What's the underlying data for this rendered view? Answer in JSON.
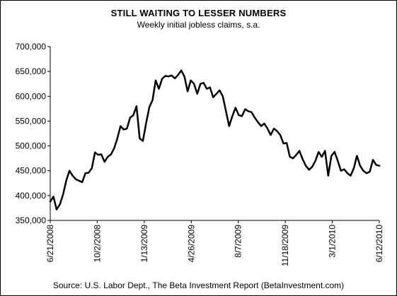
{
  "chart_data": {
    "type": "line",
    "title": "STILL WAITING TO LESSER NUMBERS",
    "subtitle": "Weekly initial jobless claims, s.a.",
    "source": "Source: U.S. Labor Dept., The Beta Investment Report (BetaInvestment.com)",
    "xlabel": "",
    "ylabel": "",
    "ylim": [
      350000,
      700000
    ],
    "y_ticks": [
      350000,
      400000,
      450000,
      500000,
      550000,
      600000,
      650000,
      700000
    ],
    "y_tick_labels": [
      "350,000",
      "400,000",
      "450,000",
      "500,000",
      "550,000",
      "600,000",
      "650,000",
      "700,000"
    ],
    "x_tick_labels": [
      "6/21/2008",
      "10/2/2008",
      "1/13/2009",
      "4/26/2009",
      "8/7/2009",
      "11/18/2009",
      "3/1/2010",
      "6/12/2010"
    ],
    "grid": false,
    "legend": "none",
    "line_color": "#000000",
    "series": [
      {
        "x": [
          "6/21/2008",
          "6/28/2008",
          "7/5/2008",
          "7/12/2008",
          "7/19/2008",
          "7/26/2008",
          "8/2/2008",
          "8/9/2008",
          "8/16/2008",
          "8/23/2008",
          "8/30/2008",
          "9/6/2008",
          "9/13/2008",
          "9/20/2008",
          "9/27/2008",
          "10/4/2008",
          "10/11/2008",
          "10/18/2008",
          "10/25/2008",
          "11/1/2008",
          "11/8/2008",
          "11/15/2008",
          "11/22/2008",
          "11/29/2008",
          "12/6/2008",
          "12/13/2008",
          "12/20/2008",
          "12/27/2008",
          "1/3/2009",
          "1/10/2009",
          "1/17/2009",
          "1/24/2009",
          "1/31/2009",
          "2/7/2009",
          "2/14/2009",
          "2/21/2009",
          "2/28/2009",
          "3/7/2009",
          "3/14/2009",
          "3/21/2009",
          "3/28/2009",
          "4/4/2009",
          "4/11/2009",
          "4/18/2009",
          "4/25/2009",
          "5/2/2009",
          "5/9/2009",
          "5/16/2009",
          "5/23/2009",
          "5/30/2009",
          "6/6/2009",
          "6/13/2009",
          "6/20/2009",
          "6/27/2009",
          "7/4/2009",
          "7/11/2009",
          "7/18/2009",
          "7/25/2009",
          "8/1/2009",
          "8/8/2009",
          "8/15/2009",
          "8/22/2009",
          "8/29/2009",
          "9/5/2009",
          "9/12/2009",
          "9/19/2009",
          "9/26/2009",
          "10/3/2009",
          "10/10/2009",
          "10/17/2009",
          "10/24/2009",
          "10/31/2009",
          "11/7/2009",
          "11/14/2009",
          "11/21/2009",
          "11/28/2009",
          "12/5/2009",
          "12/12/2009",
          "12/19/2009",
          "12/26/2009",
          "1/2/2010",
          "1/9/2010",
          "1/16/2010",
          "1/23/2010",
          "1/30/2010",
          "2/6/2010",
          "2/13/2010",
          "2/20/2010",
          "2/27/2010",
          "3/6/2010",
          "3/13/2010",
          "3/20/2010",
          "3/27/2010",
          "4/3/2010",
          "4/10/2010",
          "4/17/2010",
          "4/24/2010",
          "5/1/2010",
          "5/8/2010",
          "5/15/2010",
          "5/22/2010",
          "5/29/2010",
          "6/5/2010",
          "6/12/2010"
        ],
        "values": [
          388000,
          398000,
          372000,
          382000,
          402000,
          430000,
          450000,
          440000,
          433000,
          430000,
          427000,
          445000,
          446000,
          455000,
          487000,
          482000,
          483000,
          468000,
          478000,
          483000,
          495000,
          515000,
          540000,
          533000,
          535000,
          557000,
          562000,
          580000,
          515000,
          510000,
          545000,
          578000,
          592000,
          632000,
          615000,
          635000,
          641000,
          640000,
          642000,
          636000,
          643000,
          652000,
          640000,
          610000,
          632000,
          625000,
          605000,
          625000,
          627000,
          615000,
          618000,
          598000,
          605000,
          612000,
          600000,
          570000,
          540000,
          560000,
          577000,
          562000,
          560000,
          574000,
          570000,
          568000,
          557000,
          548000,
          540000,
          545000,
          535000,
          522000,
          535000,
          530000,
          522000,
          505000,
          506000,
          478000,
          475000,
          482000,
          490000,
          473000,
          460000,
          452000,
          458000,
          470000,
          488000,
          478000,
          490000,
          440000,
          480000,
          488000,
          470000,
          450000,
          453000,
          445000,
          440000,
          455000,
          480000,
          460000,
          450000,
          445000,
          448000,
          472000,
          462000,
          460000
        ]
      }
    ]
  }
}
